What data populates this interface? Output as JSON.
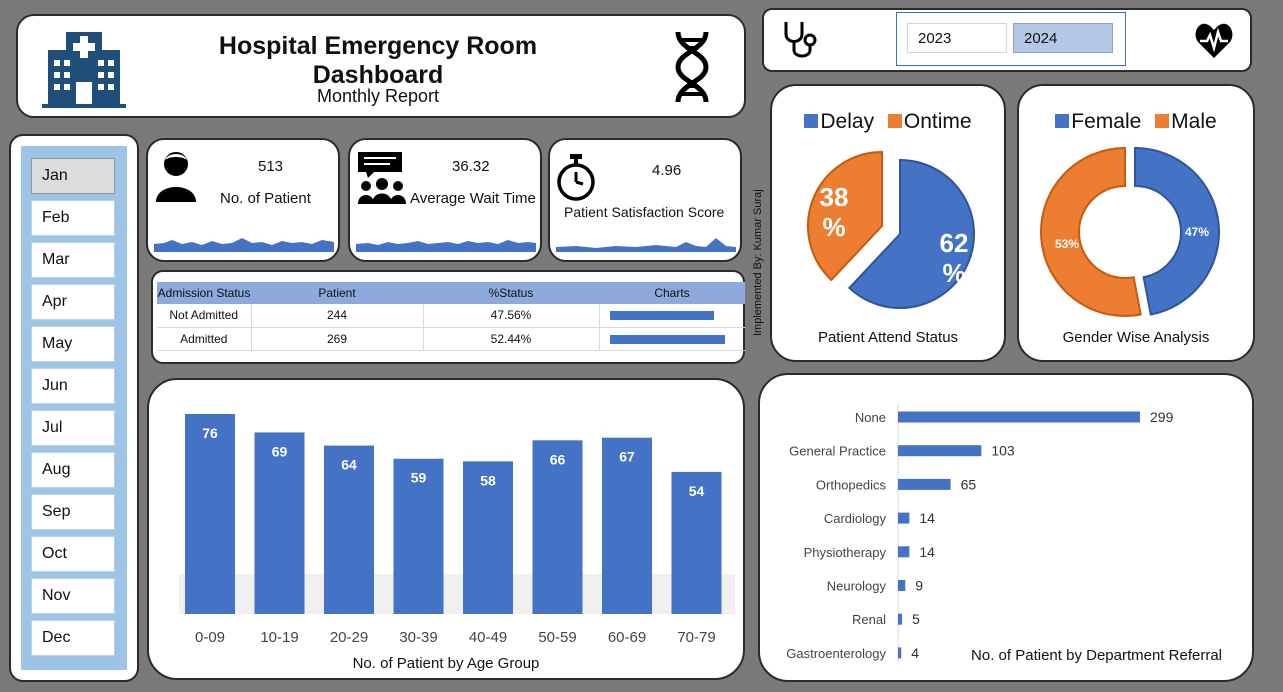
{
  "header": {
    "title": "Hospital Emergency Room Dashboard",
    "subtitle": "Monthly Report"
  },
  "years": [
    "2023",
    "2024"
  ],
  "selected_year": "2024",
  "months": [
    "Jan",
    "Feb",
    "Mar",
    "Apr",
    "May",
    "Jun",
    "Jul",
    "Aug",
    "Sep",
    "Oct",
    "Nov",
    "Dec"
  ],
  "selected_month": "Jan",
  "kpis": {
    "patients": {
      "value": "513",
      "label": "No. of Patient"
    },
    "wait": {
      "value": "36.32",
      "label": "Average Wait Time"
    },
    "satisfaction": {
      "value": "4.96",
      "label": "Patient Satisfaction Score"
    }
  },
  "admission": {
    "headers": [
      "Admission Status",
      "Patient",
      "%Status",
      "Charts"
    ],
    "rows": [
      {
        "status": "Not Admitted",
        "patient": "244",
        "pct": "47.56%",
        "fraction": 0.4756
      },
      {
        "status": "Admitted",
        "patient": "269",
        "pct": "52.44%",
        "fraction": 0.5244
      }
    ]
  },
  "implemented_by": "Implemented By: Kumar Suraj",
  "colors": {
    "blue": "#4472c4",
    "orange": "#ed7d31",
    "table_header": "#8ea9db",
    "slicer": "#9dc3e6"
  },
  "chart_data": [
    {
      "type": "bar",
      "title": "No. of Patient by Age Group",
      "categories": [
        "0-09",
        "10-19",
        "20-29",
        "30-39",
        "40-49",
        "50-59",
        "60-69",
        "70-79"
      ],
      "values": [
        76,
        69,
        64,
        59,
        58,
        66,
        67,
        54
      ]
    },
    {
      "type": "pie",
      "title": "Patient Attend Status",
      "labels": [
        "Delay",
        "Ontime"
      ],
      "values": [
        62,
        38
      ],
      "value_labels": [
        "62 %",
        "38 %"
      ]
    },
    {
      "type": "pie",
      "title": "Gender Wise Analysis",
      "labels": [
        "Female",
        "Male"
      ],
      "values": [
        47,
        53
      ],
      "value_labels": [
        "47%",
        "53%"
      ]
    },
    {
      "type": "bar",
      "orientation": "horizontal",
      "title": "No. of Patient by Department Referral",
      "categories": [
        "None",
        "General Practice",
        "Orthopedics",
        "Cardiology",
        "Physiotherapy",
        "Neurology",
        "Renal",
        "Gastroenterology"
      ],
      "values": [
        299,
        103,
        65,
        14,
        14,
        9,
        5,
        4
      ]
    }
  ]
}
